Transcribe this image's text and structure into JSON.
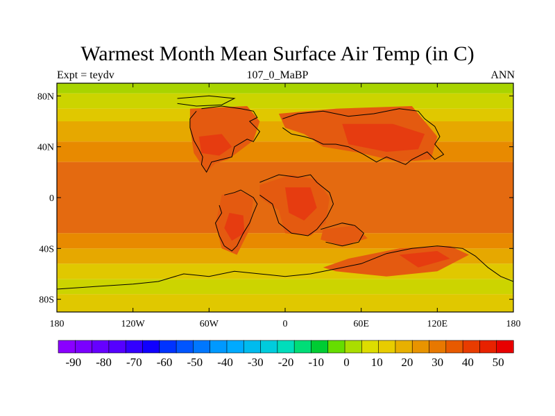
{
  "title": "Warmest Month Mean Surface Air Temp (in C)",
  "subtitle_left": "Expt = teydv",
  "subtitle_center": "107_0_MaBP",
  "subtitle_right": "ANN",
  "map": {
    "lat_ticks": [
      {
        "value": 80,
        "label": "80N"
      },
      {
        "value": 40,
        "label": "40N"
      },
      {
        "value": 0,
        "label": "0"
      },
      {
        "value": -40,
        "label": "40S"
      },
      {
        "value": -80,
        "label": "80S"
      }
    ],
    "lon_ticks": [
      {
        "value": -180,
        "label": "180"
      },
      {
        "value": -120,
        "label": "120W"
      },
      {
        "value": -60,
        "label": "60W"
      },
      {
        "value": 0,
        "label": "0"
      },
      {
        "value": 60,
        "label": "60E"
      },
      {
        "value": 120,
        "label": "120E"
      },
      {
        "value": 180,
        "label": "180"
      }
    ],
    "lat_range": [
      -90,
      90
    ],
    "lon_range": [
      -180,
      180
    ],
    "field_bands": [
      {
        "lat_from": 90,
        "lat_to": 82,
        "value": 10
      },
      {
        "lat_from": 82,
        "lat_to": 70,
        "value": 15
      },
      {
        "lat_from": 70,
        "lat_to": 60,
        "value": 20
      },
      {
        "lat_from": 60,
        "lat_to": 44,
        "value": 25
      },
      {
        "lat_from": 44,
        "lat_to": 28,
        "value": 30
      },
      {
        "lat_from": 28,
        "lat_to": -28,
        "value": 35
      },
      {
        "lat_from": -28,
        "lat_to": -40,
        "value": 30
      },
      {
        "lat_from": -40,
        "lat_to": -52,
        "value": 25
      },
      {
        "lat_from": -52,
        "lat_to": -64,
        "value": 20
      },
      {
        "lat_from": -64,
        "lat_to": -76,
        "value": 15
      },
      {
        "lat_from": -76,
        "lat_to": -90,
        "value": 20
      }
    ],
    "hot_regions": [
      {
        "name": "north-america",
        "value": 40,
        "points": [
          [
            -75,
            70
          ],
          [
            -30,
            72
          ],
          [
            -20,
            60
          ],
          [
            -25,
            45
          ],
          [
            -45,
            30
          ],
          [
            -55,
            27
          ],
          [
            -62,
            20
          ],
          [
            -72,
            35
          ],
          [
            -75,
            55
          ]
        ]
      },
      {
        "name": "north-america-core",
        "value": 45,
        "points": [
          [
            -68,
            48
          ],
          [
            -50,
            50
          ],
          [
            -42,
            40
          ],
          [
            -52,
            33
          ],
          [
            -66,
            35
          ]
        ]
      },
      {
        "name": "south-america",
        "value": 40,
        "points": [
          [
            -50,
            2
          ],
          [
            -35,
            5
          ],
          [
            -25,
            0
          ],
          [
            -28,
            -25
          ],
          [
            -38,
            -45
          ],
          [
            -50,
            -40
          ],
          [
            -55,
            -20
          ],
          [
            -52,
            -8
          ]
        ]
      },
      {
        "name": "south-america-core",
        "value": 45,
        "points": [
          [
            -44,
            -12
          ],
          [
            -33,
            -14
          ],
          [
            -32,
            -28
          ],
          [
            -42,
            -34
          ],
          [
            -48,
            -24
          ]
        ]
      },
      {
        "name": "africa",
        "value": 40,
        "points": [
          [
            -20,
            10
          ],
          [
            5,
            18
          ],
          [
            25,
            14
          ],
          [
            35,
            0
          ],
          [
            32,
            -20
          ],
          [
            20,
            -30
          ],
          [
            0,
            -28
          ],
          [
            -5,
            -10
          ],
          [
            -20,
            0
          ]
        ]
      },
      {
        "name": "africa-core",
        "value": 45,
        "points": [
          [
            0,
            8
          ],
          [
            20,
            8
          ],
          [
            25,
            -8
          ],
          [
            15,
            -18
          ],
          [
            3,
            -12
          ]
        ]
      },
      {
        "name": "eurasia",
        "value": 40,
        "points": [
          [
            -5,
            66
          ],
          [
            40,
            70
          ],
          [
            100,
            72
          ],
          [
            110,
            60
          ],
          [
            120,
            48
          ],
          [
            115,
            30
          ],
          [
            90,
            28
          ],
          [
            60,
            35
          ],
          [
            30,
            40
          ],
          [
            15,
            50
          ],
          [
            0,
            55
          ]
        ]
      },
      {
        "name": "eurasia-core",
        "value": 45,
        "points": [
          [
            45,
            58
          ],
          [
            85,
            58
          ],
          [
            110,
            50
          ],
          [
            105,
            38
          ],
          [
            80,
            36
          ],
          [
            50,
            42
          ]
        ]
      },
      {
        "name": "india",
        "value": 40,
        "points": [
          [
            30,
            -25
          ],
          [
            55,
            -22
          ],
          [
            65,
            -32
          ],
          [
            45,
            -38
          ],
          [
            28,
            -33
          ]
        ]
      },
      {
        "name": "australia-antarctic",
        "value": 40,
        "points": [
          [
            50,
            -48
          ],
          [
            90,
            -40
          ],
          [
            130,
            -38
          ],
          [
            145,
            -45
          ],
          [
            120,
            -58
          ],
          [
            80,
            -62
          ],
          [
            40,
            -58
          ],
          [
            30,
            -55
          ]
        ]
      },
      {
        "name": "australia-core",
        "value": 45,
        "points": [
          [
            90,
            -45
          ],
          [
            120,
            -42
          ],
          [
            130,
            -48
          ],
          [
            105,
            -55
          ]
        ]
      }
    ],
    "coastlines": [
      {
        "name": "north-america-coast",
        "points": [
          [
            -66,
            70
          ],
          [
            -50,
            72
          ],
          [
            -35,
            70
          ],
          [
            -25,
            68
          ],
          [
            -22,
            63
          ],
          [
            -28,
            60
          ],
          [
            -20,
            52
          ],
          [
            -25,
            44
          ],
          [
            -30,
            46
          ],
          [
            -40,
            40
          ],
          [
            -42,
            32
          ],
          [
            -50,
            30
          ],
          [
            -58,
            28
          ],
          [
            -62,
            20
          ],
          [
            -66,
            26
          ],
          [
            -65,
            32
          ],
          [
            -68,
            38
          ],
          [
            -72,
            45
          ],
          [
            -75,
            55
          ],
          [
            -75,
            62
          ],
          [
            -70,
            68
          ]
        ]
      },
      {
        "name": "south-america-coast",
        "points": [
          [
            -48,
            2
          ],
          [
            -40,
            4
          ],
          [
            -35,
            6
          ],
          [
            -25,
            0
          ],
          [
            -22,
            -5
          ],
          [
            -25,
            -12
          ],
          [
            -28,
            -20
          ],
          [
            -33,
            -28
          ],
          [
            -38,
            -38
          ],
          [
            -42,
            -42
          ],
          [
            -48,
            -38
          ],
          [
            -52,
            -30
          ],
          [
            -55,
            -20
          ],
          [
            -50,
            -12
          ],
          [
            -52,
            -6
          ]
        ]
      },
      {
        "name": "africa-coast",
        "points": [
          [
            -20,
            12
          ],
          [
            -5,
            18
          ],
          [
            10,
            16
          ],
          [
            20,
            18
          ],
          [
            25,
            12
          ],
          [
            35,
            4
          ],
          [
            38,
            -5
          ],
          [
            33,
            -15
          ],
          [
            25,
            -25
          ],
          [
            18,
            -30
          ],
          [
            5,
            -28
          ],
          [
            -5,
            -20
          ],
          [
            -10,
            -5
          ],
          [
            -20,
            2
          ]
        ]
      },
      {
        "name": "eurasia-coast",
        "points": [
          [
            -2,
            62
          ],
          [
            10,
            66
          ],
          [
            30,
            68
          ],
          [
            50,
            64
          ],
          [
            70,
            66
          ],
          [
            90,
            70
          ],
          [
            105,
            68
          ],
          [
            110,
            62
          ],
          [
            118,
            56
          ],
          [
            122,
            48
          ],
          [
            118,
            42
          ],
          [
            125,
            34
          ],
          [
            118,
            30
          ],
          [
            112,
            36
          ],
          [
            100,
            30
          ],
          [
            95,
            26
          ],
          [
            80,
            32
          ],
          [
            72,
            28
          ],
          [
            62,
            34
          ],
          [
            50,
            40
          ],
          [
            40,
            42
          ],
          [
            30,
            42
          ],
          [
            22,
            46
          ],
          [
            15,
            48
          ],
          [
            5,
            50
          ],
          [
            -2,
            55
          ]
        ]
      },
      {
        "name": "greenland-coast",
        "points": [
          [
            -85,
            78
          ],
          [
            -60,
            80
          ],
          [
            -40,
            78
          ],
          [
            -50,
            73
          ],
          [
            -70,
            72
          ],
          [
            -85,
            74
          ]
        ]
      },
      {
        "name": "india-coast",
        "points": [
          [
            28,
            -25
          ],
          [
            45,
            -20
          ],
          [
            55,
            -22
          ],
          [
            62,
            -28
          ],
          [
            58,
            -35
          ],
          [
            45,
            -38
          ],
          [
            32,
            -35
          ]
        ]
      },
      {
        "name": "antarctic-coast",
        "points": [
          [
            -180,
            -72
          ],
          [
            -150,
            -70
          ],
          [
            -120,
            -68
          ],
          [
            -100,
            -66
          ],
          [
            -80,
            -60
          ],
          [
            -60,
            -62
          ],
          [
            -40,
            -58
          ],
          [
            -20,
            -60
          ],
          [
            0,
            -62
          ],
          [
            20,
            -60
          ],
          [
            40,
            -56
          ],
          [
            60,
            -52
          ],
          [
            80,
            -44
          ],
          [
            100,
            -40
          ],
          [
            120,
            -38
          ],
          [
            140,
            -40
          ],
          [
            150,
            -46
          ],
          [
            160,
            -55
          ],
          [
            170,
            -62
          ],
          [
            180,
            -66
          ]
        ]
      }
    ]
  },
  "colorbar": {
    "colors": [
      "#8a00ff",
      "#7a00ff",
      "#6600ff",
      "#5500ff",
      "#3300ff",
      "#1000ff",
      "#0033ff",
      "#0055ff",
      "#0077ff",
      "#0099ff",
      "#00aaff",
      "#00bbee",
      "#00ccdd",
      "#00ddbb",
      "#00dd77",
      "#00cc33",
      "#66dd00",
      "#aadd00",
      "#dddd00",
      "#e8cc00",
      "#e8b000",
      "#e89400",
      "#e87800",
      "#e85a00",
      "#e83c00",
      "#e82200",
      "#e80000"
    ],
    "levels": [
      -90,
      -80,
      -70,
      -60,
      -50,
      -40,
      -30,
      -20,
      -10,
      0,
      10,
      20,
      30,
      40,
      50
    ],
    "labels": [
      "-90",
      "-80",
      "-70",
      "-60",
      "-50",
      "-40",
      "-30",
      "-20",
      "-10",
      "0",
      "10",
      "20",
      "30",
      "40",
      "50"
    ],
    "min": -95,
    "max": 55
  },
  "value_colors": {
    "10": "#a8d400",
    "15": "#ccd400",
    "20": "#e0c800",
    "25": "#e6a800",
    "30": "#e88a00",
    "35": "#e46a10",
    "40": "#e45a10",
    "45": "#e63c10"
  }
}
